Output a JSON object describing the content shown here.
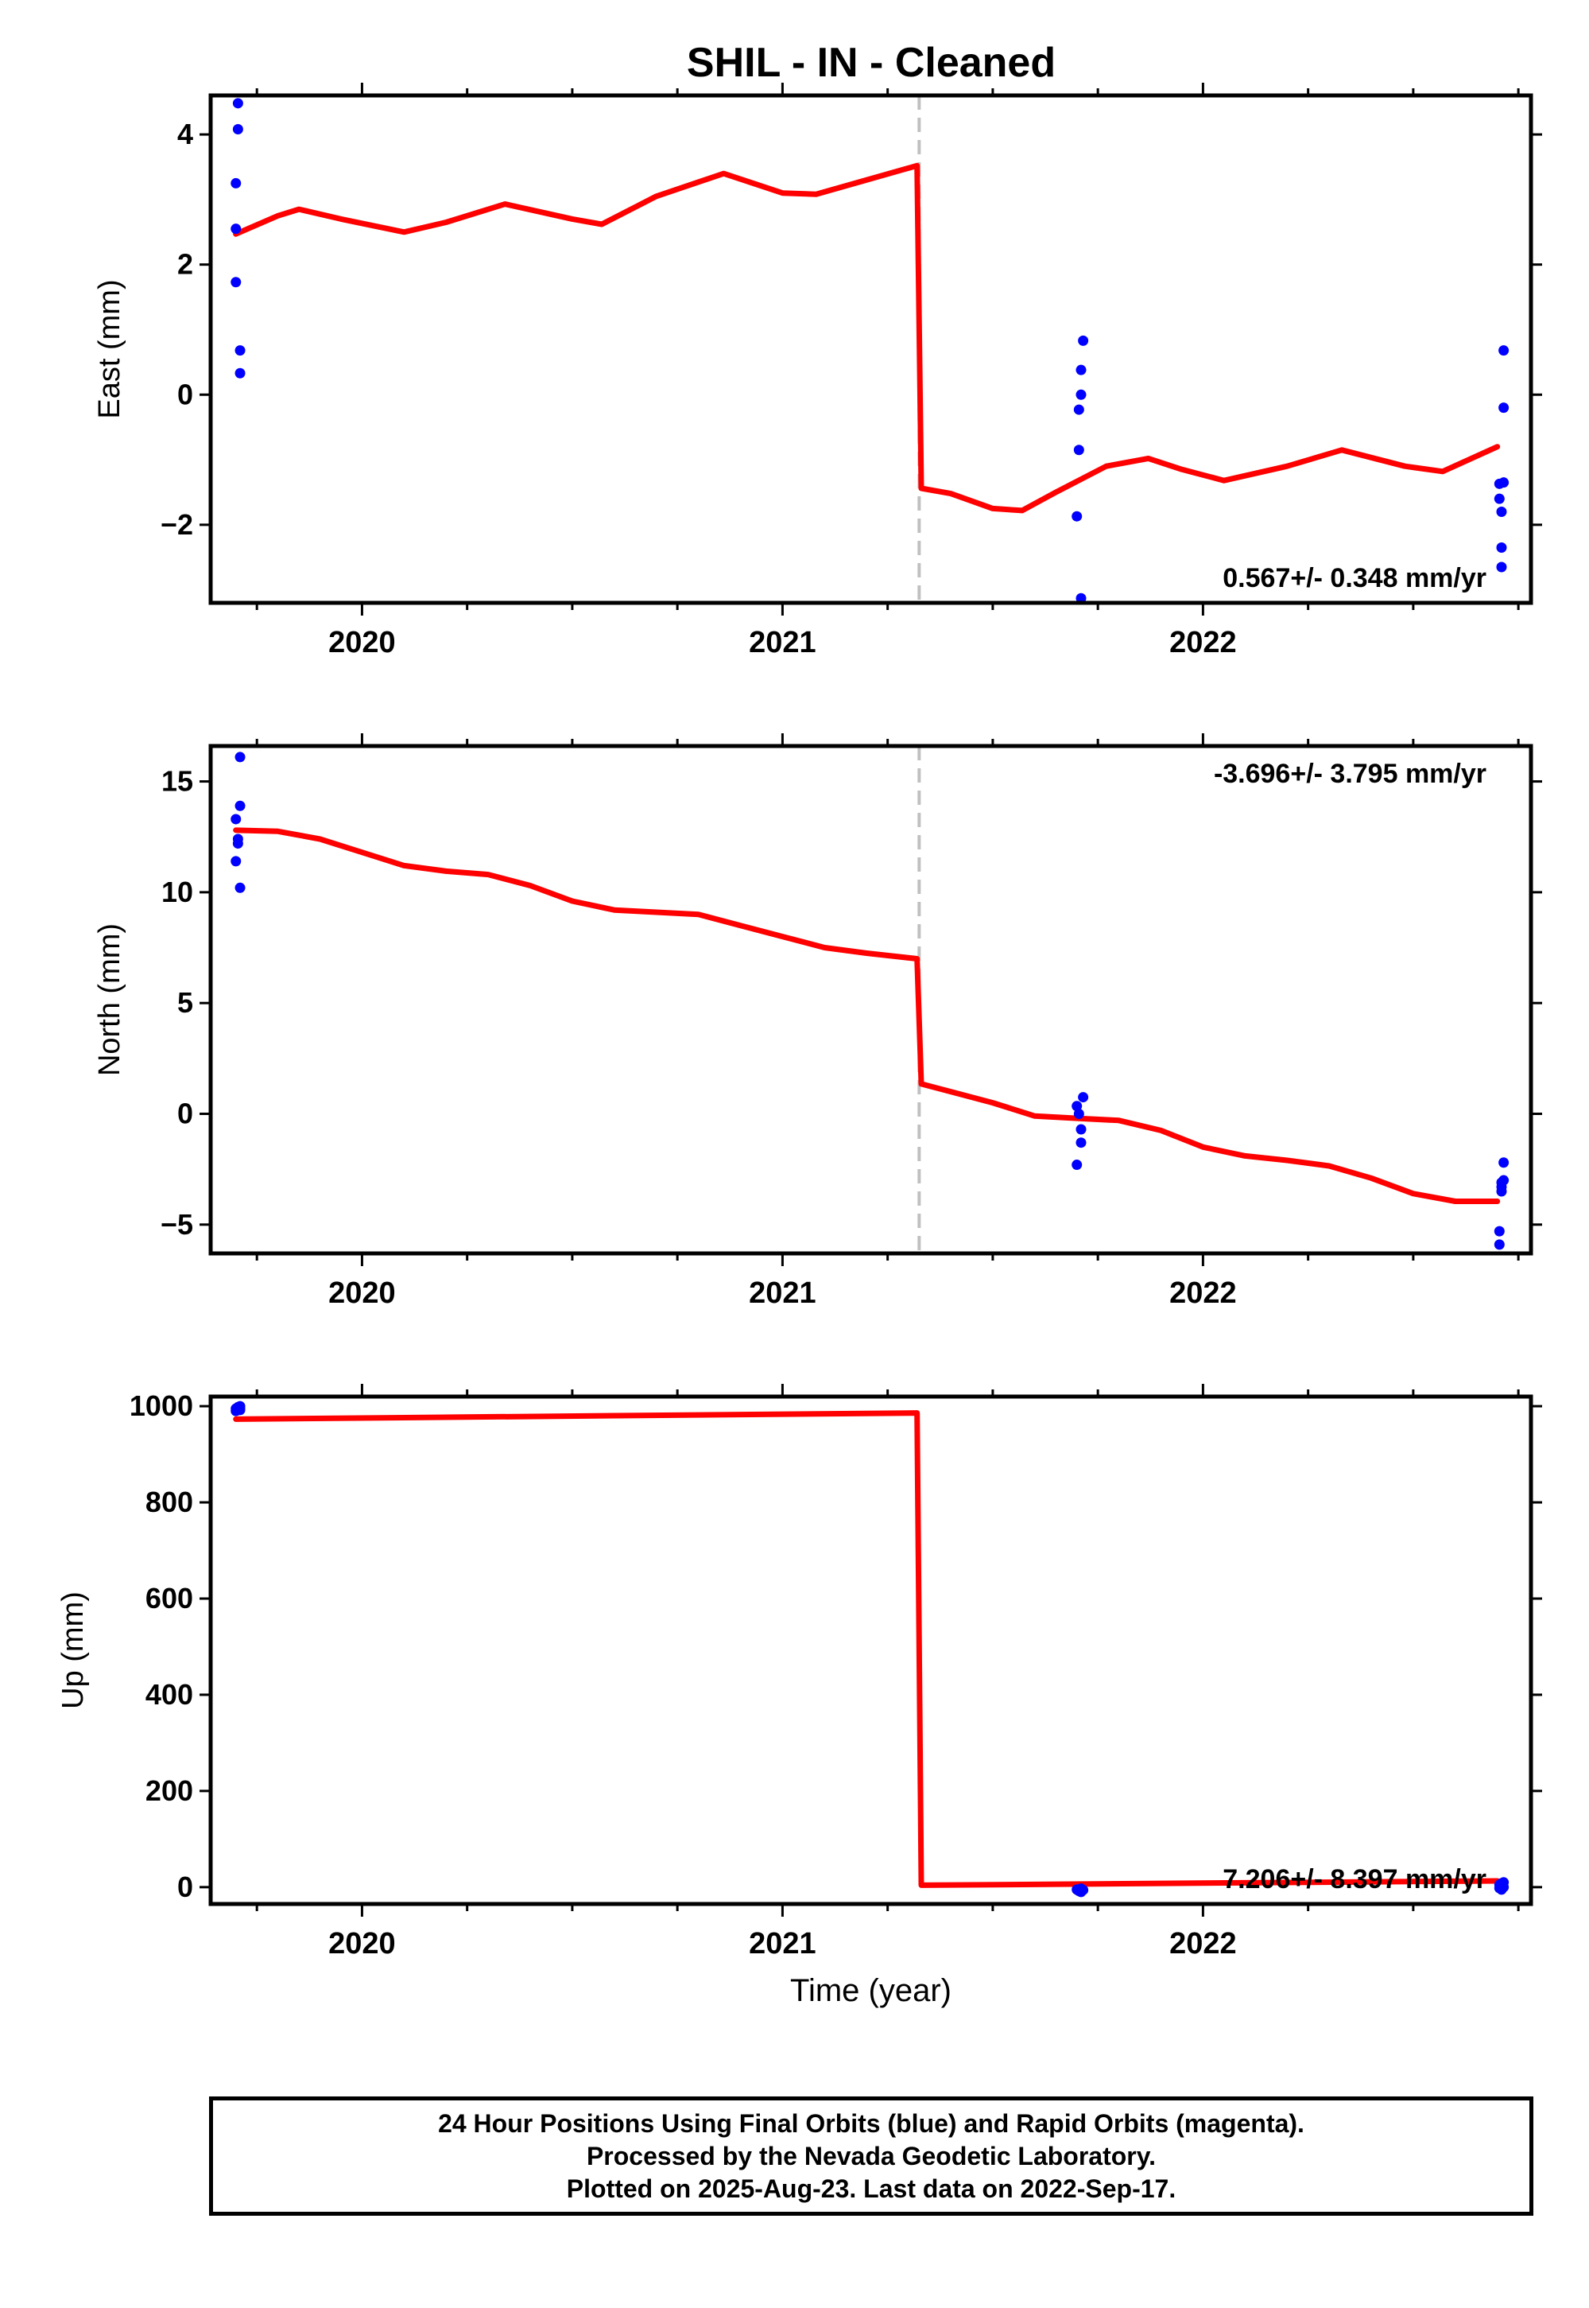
{
  "title": "SHIL  - IN - Cleaned",
  "colors": {
    "model": "#ff0000",
    "final_orbits": "#0000ff",
    "step_marker": "#c0c0c0",
    "frame": "#000000"
  },
  "chart_data": [
    {
      "type": "scatter",
      "ylabel": "East (mm)",
      "xlabel": "",
      "xlim": [
        2019.64,
        2022.78
      ],
      "ylim": [
        -3.2,
        4.6
      ],
      "yticks": [
        -2,
        0,
        2,
        4
      ],
      "ytick_labels": [
        "−2",
        "0",
        "2",
        "4"
      ],
      "xticks": [
        2020,
        2021,
        2022
      ],
      "xtick_labels": [
        "2020",
        "2021",
        "2022"
      ],
      "grid": false,
      "legend": "none",
      "rate_text": "0.567+/- 0.348 mm/yr",
      "rate_position": "bottom-right",
      "step_epoch": 2021.325,
      "series": [
        {
          "kind": "points",
          "x": [
            2019.7,
            2019.7,
            2019.7,
            2019.705,
            2019.705,
            2019.71,
            2019.71,
            2021.7,
            2021.705,
            2021.705,
            2021.71,
            2021.71,
            2021.715,
            2021.71,
            2022.705,
            2022.705,
            2022.71,
            2022.71,
            2022.71,
            2022.715,
            2022.715,
            2022.715
          ],
          "y": [
            1.73,
            2.55,
            3.25,
            4.48,
            4.08,
            0.68,
            0.33,
            -1.87,
            -0.85,
            -0.23,
            0.0,
            0.38,
            0.83,
            -3.13,
            -1.37,
            -1.6,
            -1.8,
            -2.35,
            -2.65,
            -0.2,
            0.68,
            -1.35
          ]
        },
        {
          "kind": "model",
          "x": [
            2019.7,
            2019.8,
            2019.85,
            2019.95,
            2020.1,
            2020.2,
            2020.34,
            2020.5,
            2020.57,
            2020.7,
            2020.86,
            2021.0,
            2021.08,
            2021.2,
            2021.32,
            2021.33,
            2021.4,
            2021.5,
            2021.57,
            2021.65,
            2021.77,
            2021.87,
            2021.95,
            2022.05,
            2022.2,
            2022.33,
            2022.48,
            2022.57,
            2022.7
          ],
          "y": [
            2.47,
            2.75,
            2.85,
            2.7,
            2.5,
            2.65,
            2.93,
            2.7,
            2.62,
            3.05,
            3.4,
            3.1,
            3.08,
            3.3,
            3.52,
            -1.44,
            -1.52,
            -1.75,
            -1.78,
            -1.5,
            -1.1,
            -0.98,
            -1.15,
            -1.32,
            -1.1,
            -0.85,
            -1.1,
            -1.18,
            -0.8
          ]
        }
      ]
    },
    {
      "type": "scatter",
      "ylabel": "North (mm)",
      "xlabel": "",
      "xlim": [
        2019.64,
        2022.78
      ],
      "ylim": [
        -6.3,
        16.6
      ],
      "yticks": [
        -5,
        0,
        5,
        10,
        15
      ],
      "ytick_labels": [
        "−5",
        "0",
        "5",
        "10",
        "15"
      ],
      "xticks": [
        2020,
        2021,
        2022
      ],
      "xtick_labels": [
        "2020",
        "2021",
        "2022"
      ],
      "grid": false,
      "legend": "none",
      "rate_text": "-3.696+/- 3.795 mm/yr",
      "rate_position": "top-right",
      "step_epoch": 2021.325,
      "series": [
        {
          "kind": "points",
          "x": [
            2019.7,
            2019.7,
            2019.705,
            2019.705,
            2019.71,
            2019.71,
            2019.71,
            2021.7,
            2021.705,
            2021.71,
            2021.71,
            2021.715,
            2021.7,
            2022.705,
            2022.705,
            2022.71,
            2022.71,
            2022.715,
            2022.715,
            2022.71
          ],
          "y": [
            11.4,
            13.3,
            12.2,
            12.4,
            13.9,
            16.1,
            10.2,
            0.35,
            0.0,
            -0.7,
            -1.3,
            0.75,
            -2.3,
            -5.3,
            -5.9,
            -3.5,
            -3.1,
            -2.2,
            -3.0,
            -3.3
          ]
        },
        {
          "kind": "model",
          "x": [
            2019.7,
            2019.8,
            2019.9,
            2020.0,
            2020.1,
            2020.2,
            2020.3,
            2020.4,
            2020.5,
            2020.6,
            2020.7,
            2020.8,
            2020.9,
            2021.0,
            2021.1,
            2021.2,
            2021.32,
            2021.33,
            2021.4,
            2021.5,
            2021.6,
            2021.7,
            2021.8,
            2021.9,
            2022.0,
            2022.1,
            2022.2,
            2022.3,
            2022.4,
            2022.5,
            2022.6,
            2022.7
          ],
          "y": [
            12.8,
            12.75,
            12.4,
            11.8,
            11.2,
            10.95,
            10.8,
            10.3,
            9.6,
            9.2,
            9.1,
            9.0,
            8.5,
            8.0,
            7.5,
            7.25,
            7.0,
            1.35,
            1.0,
            0.5,
            -0.1,
            -0.2,
            -0.3,
            -0.75,
            -1.5,
            -1.9,
            -2.1,
            -2.35,
            -2.9,
            -3.6,
            -3.95,
            -3.95
          ]
        }
      ]
    },
    {
      "type": "scatter",
      "ylabel": "Up (mm)",
      "xlabel": "Time (year)",
      "xlim": [
        2019.64,
        2022.78
      ],
      "ylim": [
        -35,
        1020
      ],
      "yticks": [
        0,
        200,
        400,
        600,
        800,
        1000
      ],
      "ytick_labels": [
        "0",
        "200",
        "400",
        "600",
        "800",
        "1000"
      ],
      "xticks": [
        2020,
        2021,
        2022
      ],
      "xtick_labels": [
        "2020",
        "2021",
        "2022"
      ],
      "grid": false,
      "legend": "none",
      "rate_text": "7.206+/- 8.397 mm/yr",
      "rate_position": "bottom-right",
      "series": [
        {
          "kind": "points",
          "x": [
            2019.7,
            2019.7,
            2019.705,
            2019.705,
            2019.71,
            2019.71,
            2019.71,
            2021.7,
            2021.705,
            2021.71,
            2021.71,
            2021.715,
            2022.705,
            2022.705,
            2022.71,
            2022.71,
            2022.715,
            2022.715
          ],
          "y": [
            995,
            990,
            998,
            993,
            1000,
            996,
            992,
            -5,
            -8,
            -3,
            -10,
            -6,
            5,
            -2,
            -5,
            8,
            10,
            0
          ]
        },
        {
          "kind": "model",
          "x": [
            2019.7,
            2021.32,
            2021.33,
            2022.7
          ],
          "y": [
            973,
            986,
            4,
            13
          ]
        }
      ]
    }
  ],
  "footer": {
    "line1": "24 Hour Positions Using Final Orbits (blue) and Rapid Orbits (magenta).",
    "line2": "Processed by the Nevada Geodetic Laboratory.",
    "line3": "Plotted on 2025-Aug-23. Last data on 2022-Sep-17."
  }
}
